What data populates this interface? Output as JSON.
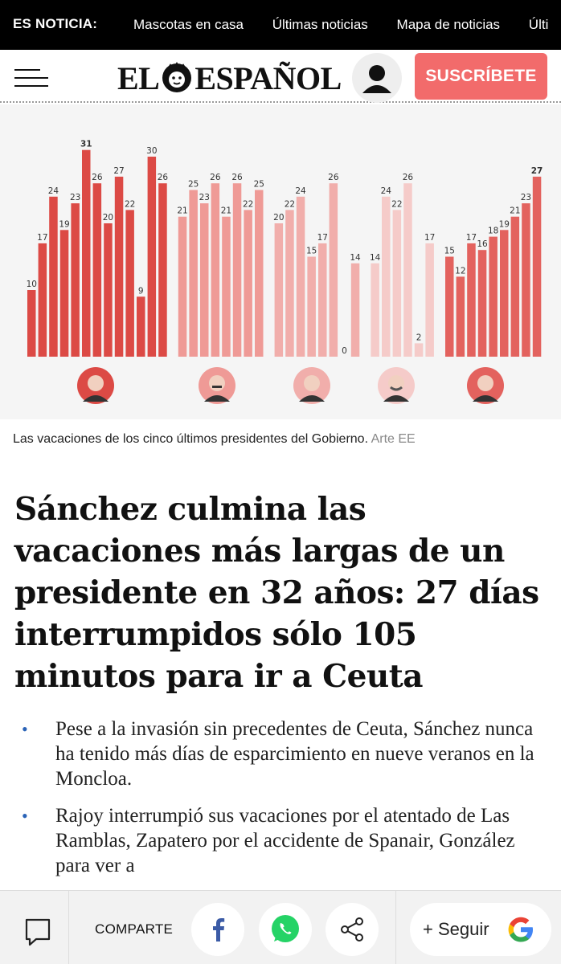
{
  "ticker": {
    "label": "ES NOTICIA:",
    "links": [
      "Mascotas en casa",
      "Últimas noticias",
      "Mapa de noticias",
      "Últi"
    ]
  },
  "header": {
    "logo_left": "EL",
    "logo_right": "ESPAÑOL",
    "subscribe_label": "SUSCRÍBETE",
    "icons": {
      "menu": "hamburger-icon",
      "user": "user-icon",
      "logo": "lion-icon"
    }
  },
  "chart_data": {
    "type": "bar",
    "values": [
      10,
      17,
      24,
      19,
      23,
      31,
      26,
      20,
      27,
      22,
      9,
      30,
      26,
      21,
      25,
      23,
      26,
      21,
      26,
      22,
      25,
      20,
      22,
      24,
      15,
      17,
      26,
      0,
      14,
      14,
      24,
      22,
      26,
      2,
      17,
      15,
      12,
      17,
      16,
      18,
      19,
      21,
      23,
      27
    ],
    "series": [
      {
        "values": [
          10,
          17,
          24,
          19,
          23,
          31,
          26,
          20,
          27,
          22,
          9,
          30,
          26
        ],
        "color": "#dc4a45"
      },
      {
        "values": [
          21,
          25,
          23,
          26,
          21,
          26,
          22,
          25
        ],
        "color": "#ef9a96"
      },
      {
        "values": [
          20,
          22,
          24,
          15,
          17,
          26,
          0,
          14
        ],
        "color": "#f1aeab"
      },
      {
        "values": [
          14,
          24,
          22,
          26,
          2,
          17
        ],
        "color": "#f5cbc9"
      },
      {
        "values": [
          15,
          12,
          17,
          16,
          18,
          19,
          21,
          23,
          27
        ],
        "color": "#e3625e"
      }
    ],
    "ylim": [
      0,
      31
    ],
    "highlighted_value": 27,
    "grid": false,
    "legend": "none"
  },
  "caption": {
    "text": "Las vacaciones de los cinco últimos presidentes del Gobierno.",
    "credit": "Arte EE"
  },
  "headline": "Sánchez culmina las vacaciones más largas de un presidente en 32 años: 27 días interrumpidos sólo 105 minutos para ir a Ceuta",
  "bullets": [
    "Pese a la invasión sin precedentes de Ceuta, Sánchez nunca ha tenido más días de esparcimiento en nueve veranos en la Moncloa.",
    "Rajoy interrumpió sus vacaciones por el atentado de Las Ramblas, Zapatero por el accidente de Spanair, González para ver a"
  ],
  "bottom_bar": {
    "share_label": "COMPARTE",
    "follow_label": "+ Seguir",
    "icons": {
      "comment": "comment-icon",
      "facebook": "facebook-icon",
      "whatsapp": "whatsapp-icon",
      "share": "share-icon",
      "google": "google-icon"
    }
  }
}
